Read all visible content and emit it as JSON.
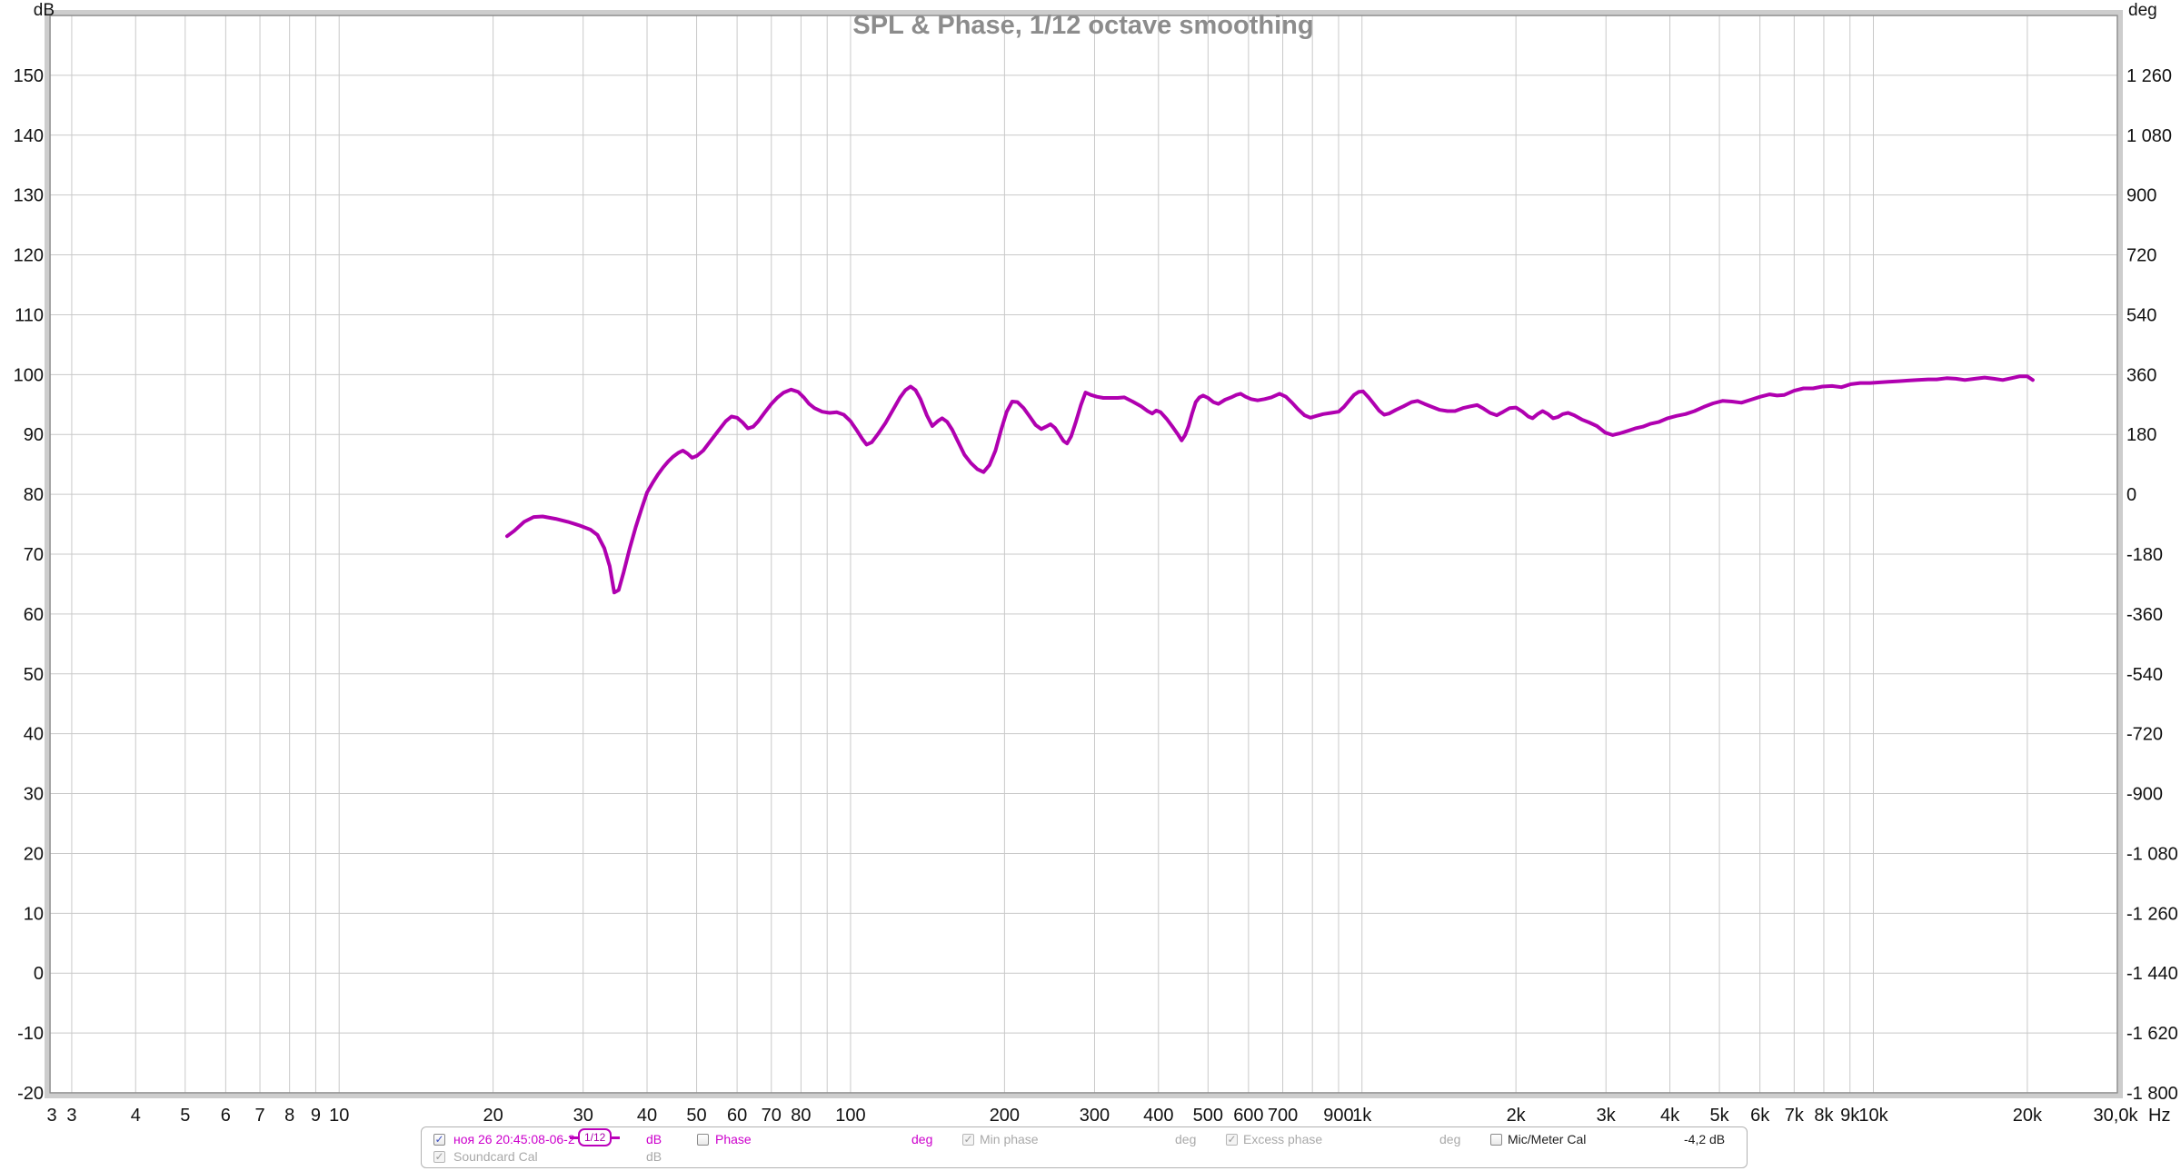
{
  "chart_data": {
    "type": "line",
    "title": "SPL & Phase, 1/12 octave smoothing",
    "grid": true,
    "x_axis": {
      "unit": "Hz",
      "scale": "log",
      "min": 2.72,
      "max": 30000,
      "edge_label_left": "3",
      "edge_label_right": "30,0k",
      "ticks": [
        {
          "f": 3,
          "label": "3"
        },
        {
          "f": 4,
          "label": "4"
        },
        {
          "f": 5,
          "label": "5"
        },
        {
          "f": 6,
          "label": "6"
        },
        {
          "f": 7,
          "label": "7"
        },
        {
          "f": 8,
          "label": "8"
        },
        {
          "f": 9,
          "label": "9"
        },
        {
          "f": 10,
          "label": "10"
        },
        {
          "f": 20,
          "label": "20"
        },
        {
          "f": 30,
          "label": "30"
        },
        {
          "f": 40,
          "label": "40"
        },
        {
          "f": 50,
          "label": "50"
        },
        {
          "f": 60,
          "label": "60"
        },
        {
          "f": 70,
          "label": "70"
        },
        {
          "f": 80,
          "label": "80"
        },
        {
          "f": 90,
          "label": ""
        },
        {
          "f": 100,
          "label": "100"
        },
        {
          "f": 200,
          "label": "200"
        },
        {
          "f": 300,
          "label": "300"
        },
        {
          "f": 400,
          "label": "400"
        },
        {
          "f": 500,
          "label": "500"
        },
        {
          "f": 600,
          "label": "600"
        },
        {
          "f": 700,
          "label": "700"
        },
        {
          "f": 800,
          "label": ""
        },
        {
          "f": 900,
          "label": "900"
        },
        {
          "f": 1000,
          "label": "1k"
        },
        {
          "f": 2000,
          "label": "2k"
        },
        {
          "f": 3000,
          "label": "3k"
        },
        {
          "f": 4000,
          "label": "4k"
        },
        {
          "f": 5000,
          "label": "5k"
        },
        {
          "f": 6000,
          "label": "6k"
        },
        {
          "f": 7000,
          "label": "7k"
        },
        {
          "f": 8000,
          "label": "8k"
        },
        {
          "f": 9000,
          "label": "9k"
        },
        {
          "f": 10000,
          "label": "10k"
        },
        {
          "f": 20000,
          "label": "20k"
        },
        {
          "f": 30000,
          "label": ""
        }
      ]
    },
    "y_left": {
      "unit": "dB",
      "min": -20,
      "max": 160,
      "tick_step": 10,
      "labels": [
        "150",
        "140",
        "130",
        "120",
        "110",
        "100",
        "90",
        "80",
        "70",
        "60",
        "50",
        "40",
        "30",
        "20",
        "10",
        "0",
        "-10",
        "-20"
      ]
    },
    "y_right": {
      "unit": "deg",
      "min": -1800,
      "max": 1440,
      "tick_step": 180,
      "labels": [
        "1 260",
        "1 080",
        "900",
        "720",
        "540",
        "360",
        "180",
        "0",
        "-180",
        "-360",
        "-540",
        "-720",
        "-900",
        "-1 080",
        "-1 260",
        "-1 440",
        "-1 620",
        "-1 800"
      ]
    },
    "series": [
      {
        "name": "ноя 26 20:45:08-06-2",
        "color": "#b000b0",
        "points": [
          [
            21.3,
            73.0
          ],
          [
            22,
            73.9
          ],
          [
            23,
            75.4
          ],
          [
            24,
            76.2
          ],
          [
            25,
            76.3
          ],
          [
            26.5,
            75.9
          ],
          [
            28,
            75.4
          ],
          [
            29.5,
            74.8
          ],
          [
            31,
            74.1
          ],
          [
            32,
            73.2
          ],
          [
            33,
            71.0
          ],
          [
            33.8,
            68.0
          ],
          [
            34.5,
            63.6
          ],
          [
            35.2,
            64.0
          ],
          [
            36,
            67.0
          ],
          [
            37,
            71.0
          ],
          [
            38,
            74.5
          ],
          [
            39,
            77.5
          ],
          [
            40,
            80.3
          ],
          [
            41,
            81.9
          ],
          [
            42,
            83.3
          ],
          [
            43,
            84.5
          ],
          [
            44,
            85.5
          ],
          [
            45,
            86.3
          ],
          [
            46,
            86.9
          ],
          [
            47,
            87.3
          ],
          [
            48,
            86.8
          ],
          [
            49,
            86.1
          ],
          [
            50,
            86.4
          ],
          [
            51.5,
            87.3
          ],
          [
            53,
            88.7
          ],
          [
            55,
            90.5
          ],
          [
            57,
            92.2
          ],
          [
            58.5,
            93.0
          ],
          [
            60,
            92.8
          ],
          [
            61.5,
            92.0
          ],
          [
            63,
            91.0
          ],
          [
            64.5,
            91.3
          ],
          [
            66,
            92.2
          ],
          [
            68,
            93.7
          ],
          [
            70,
            95.1
          ],
          [
            72,
            96.2
          ],
          [
            74,
            97.0
          ],
          [
            76.5,
            97.5
          ],
          [
            79,
            97.1
          ],
          [
            81,
            96.2
          ],
          [
            83,
            95.1
          ],
          [
            85,
            94.4
          ],
          [
            88,
            93.8
          ],
          [
            91,
            93.6
          ],
          [
            94,
            93.7
          ],
          [
            97,
            93.3
          ],
          [
            100,
            92.2
          ],
          [
            103,
            90.6
          ],
          [
            105.5,
            89.2
          ],
          [
            107.5,
            88.3
          ],
          [
            110,
            88.7
          ],
          [
            113,
            90.0
          ],
          [
            117,
            91.9
          ],
          [
            121,
            94.1
          ],
          [
            125,
            96.2
          ],
          [
            128,
            97.4
          ],
          [
            131,
            98.0
          ],
          [
            134,
            97.4
          ],
          [
            137,
            95.9
          ],
          [
            141,
            93.2
          ],
          [
            144.5,
            91.4
          ],
          [
            148,
            92.2
          ],
          [
            151,
            92.7
          ],
          [
            154.5,
            92.1
          ],
          [
            158,
            90.8
          ],
          [
            162,
            88.9
          ],
          [
            167,
            86.6
          ],
          [
            172,
            85.2
          ],
          [
            177,
            84.2
          ],
          [
            182,
            83.7
          ],
          [
            187,
            84.9
          ],
          [
            192,
            87.3
          ],
          [
            197,
            90.8
          ],
          [
            202,
            93.8
          ],
          [
            207,
            95.5
          ],
          [
            212,
            95.4
          ],
          [
            218,
            94.4
          ],
          [
            224,
            93.0
          ],
          [
            230,
            91.6
          ],
          [
            236,
            90.9
          ],
          [
            241,
            91.3
          ],
          [
            246,
            91.7
          ],
          [
            251,
            91.1
          ],
          [
            256,
            90.0
          ],
          [
            261,
            88.9
          ],
          [
            265,
            88.5
          ],
          [
            270,
            89.7
          ],
          [
            276,
            92.2
          ],
          [
            282,
            94.9
          ],
          [
            288,
            97.0
          ],
          [
            295,
            96.6
          ],
          [
            303,
            96.3
          ],
          [
            312,
            96.1
          ],
          [
            322,
            96.1
          ],
          [
            333,
            96.1
          ],
          [
            343,
            96.2
          ],
          [
            356,
            95.5
          ],
          [
            370,
            94.7
          ],
          [
            381,
            93.9
          ],
          [
            389,
            93.5
          ],
          [
            396,
            94.0
          ],
          [
            404,
            93.7
          ],
          [
            415,
            92.6
          ],
          [
            426,
            91.3
          ],
          [
            436,
            90.1
          ],
          [
            444,
            89.0
          ],
          [
            451,
            89.9
          ],
          [
            458,
            91.4
          ],
          [
            465,
            93.4
          ],
          [
            473,
            95.4
          ],
          [
            481,
            96.2
          ],
          [
            489,
            96.5
          ],
          [
            500,
            96.1
          ],
          [
            512,
            95.4
          ],
          [
            524,
            95.1
          ],
          [
            540,
            95.8
          ],
          [
            555,
            96.2
          ],
          [
            568,
            96.6
          ],
          [
            579,
            96.8
          ],
          [
            592,
            96.3
          ],
          [
            607,
            95.9
          ],
          [
            625,
            95.7
          ],
          [
            645,
            95.9
          ],
          [
            665,
            96.2
          ],
          [
            690,
            96.8
          ],
          [
            710,
            96.3
          ],
          [
            730,
            95.3
          ],
          [
            750,
            94.2
          ],
          [
            772,
            93.2
          ],
          [
            793,
            92.8
          ],
          [
            815,
            93.1
          ],
          [
            840,
            93.4
          ],
          [
            870,
            93.6
          ],
          [
            900,
            93.8
          ],
          [
            922,
            94.6
          ],
          [
            945,
            95.7
          ],
          [
            965,
            96.6
          ],
          [
            985,
            97.1
          ],
          [
            1005,
            97.2
          ],
          [
            1030,
            96.2
          ],
          [
            1055,
            95.1
          ],
          [
            1080,
            94.0
          ],
          [
            1105,
            93.3
          ],
          [
            1130,
            93.5
          ],
          [
            1165,
            94.1
          ],
          [
            1205,
            94.7
          ],
          [
            1250,
            95.4
          ],
          [
            1285,
            95.6
          ],
          [
            1325,
            95.1
          ],
          [
            1370,
            94.6
          ],
          [
            1420,
            94.1
          ],
          [
            1470,
            93.9
          ],
          [
            1520,
            93.9
          ],
          [
            1575,
            94.4
          ],
          [
            1630,
            94.7
          ],
          [
            1680,
            94.9
          ],
          [
            1730,
            94.3
          ],
          [
            1780,
            93.6
          ],
          [
            1835,
            93.2
          ],
          [
            1890,
            93.8
          ],
          [
            1945,
            94.4
          ],
          [
            2000,
            94.5
          ],
          [
            2060,
            93.8
          ],
          [
            2115,
            93.0
          ],
          [
            2155,
            92.7
          ],
          [
            2205,
            93.4
          ],
          [
            2255,
            93.9
          ],
          [
            2310,
            93.4
          ],
          [
            2365,
            92.7
          ],
          [
            2415,
            92.9
          ],
          [
            2470,
            93.4
          ],
          [
            2530,
            93.6
          ],
          [
            2600,
            93.2
          ],
          [
            2690,
            92.5
          ],
          [
            2780,
            92.0
          ],
          [
            2880,
            91.4
          ],
          [
            2990,
            90.3
          ],
          [
            3090,
            89.9
          ],
          [
            3200,
            90.2
          ],
          [
            3310,
            90.6
          ],
          [
            3420,
            91.0
          ],
          [
            3540,
            91.3
          ],
          [
            3670,
            91.8
          ],
          [
            3810,
            92.1
          ],
          [
            3960,
            92.7
          ],
          [
            4120,
            93.1
          ],
          [
            4290,
            93.4
          ],
          [
            4470,
            93.9
          ],
          [
            4660,
            94.6
          ],
          [
            4860,
            95.2
          ],
          [
            5070,
            95.6
          ],
          [
            5290,
            95.5
          ],
          [
            5520,
            95.3
          ],
          [
            5760,
            95.8
          ],
          [
            6010,
            96.3
          ],
          [
            6270,
            96.7
          ],
          [
            6480,
            96.5
          ],
          [
            6700,
            96.6
          ],
          [
            7000,
            97.3
          ],
          [
            7300,
            97.7
          ],
          [
            7620,
            97.7
          ],
          [
            7950,
            98.0
          ],
          [
            8300,
            98.1
          ],
          [
            8660,
            97.9
          ],
          [
            9040,
            98.4
          ],
          [
            9430,
            98.6
          ],
          [
            9840,
            98.6
          ],
          [
            10300,
            98.7
          ],
          [
            10700,
            98.8
          ],
          [
            11200,
            98.9
          ],
          [
            11700,
            99.0
          ],
          [
            12200,
            99.1
          ],
          [
            12800,
            99.2
          ],
          [
            13300,
            99.2
          ],
          [
            13900,
            99.4
          ],
          [
            14500,
            99.3
          ],
          [
            15100,
            99.1
          ],
          [
            15800,
            99.3
          ],
          [
            16500,
            99.5
          ],
          [
            17200,
            99.3
          ],
          [
            17900,
            99.1
          ],
          [
            18600,
            99.4
          ],
          [
            19300,
            99.7
          ],
          [
            20000,
            99.7
          ],
          [
            20500,
            99.1
          ]
        ]
      }
    ],
    "colors": {
      "trace": "#b000b0",
      "grid": "#c9c9c9",
      "plot_border": "#8e8e8e",
      "outer_band": "#cdcdcd",
      "title": "#8c8c8c"
    }
  },
  "legend": {
    "units": {
      "db": "dB",
      "deg": "deg"
    },
    "row1": {
      "measurement_checked": true,
      "measurement_name": "ноя 26 20:45:08-06-2",
      "smoothing": "1/12",
      "phase_label": "Phase",
      "phase_checked": false,
      "min_phase_label": "Min phase",
      "min_phase_checked": true,
      "excess_phase_label": "Excess phase",
      "excess_phase_checked": true,
      "mic_cal_label": "Mic/Meter Cal",
      "mic_cal_checked": false,
      "mic_cal_value": "-4,2 dB"
    },
    "row2": {
      "soundcard_label": "Soundcard Cal",
      "soundcard_checked": true
    }
  }
}
